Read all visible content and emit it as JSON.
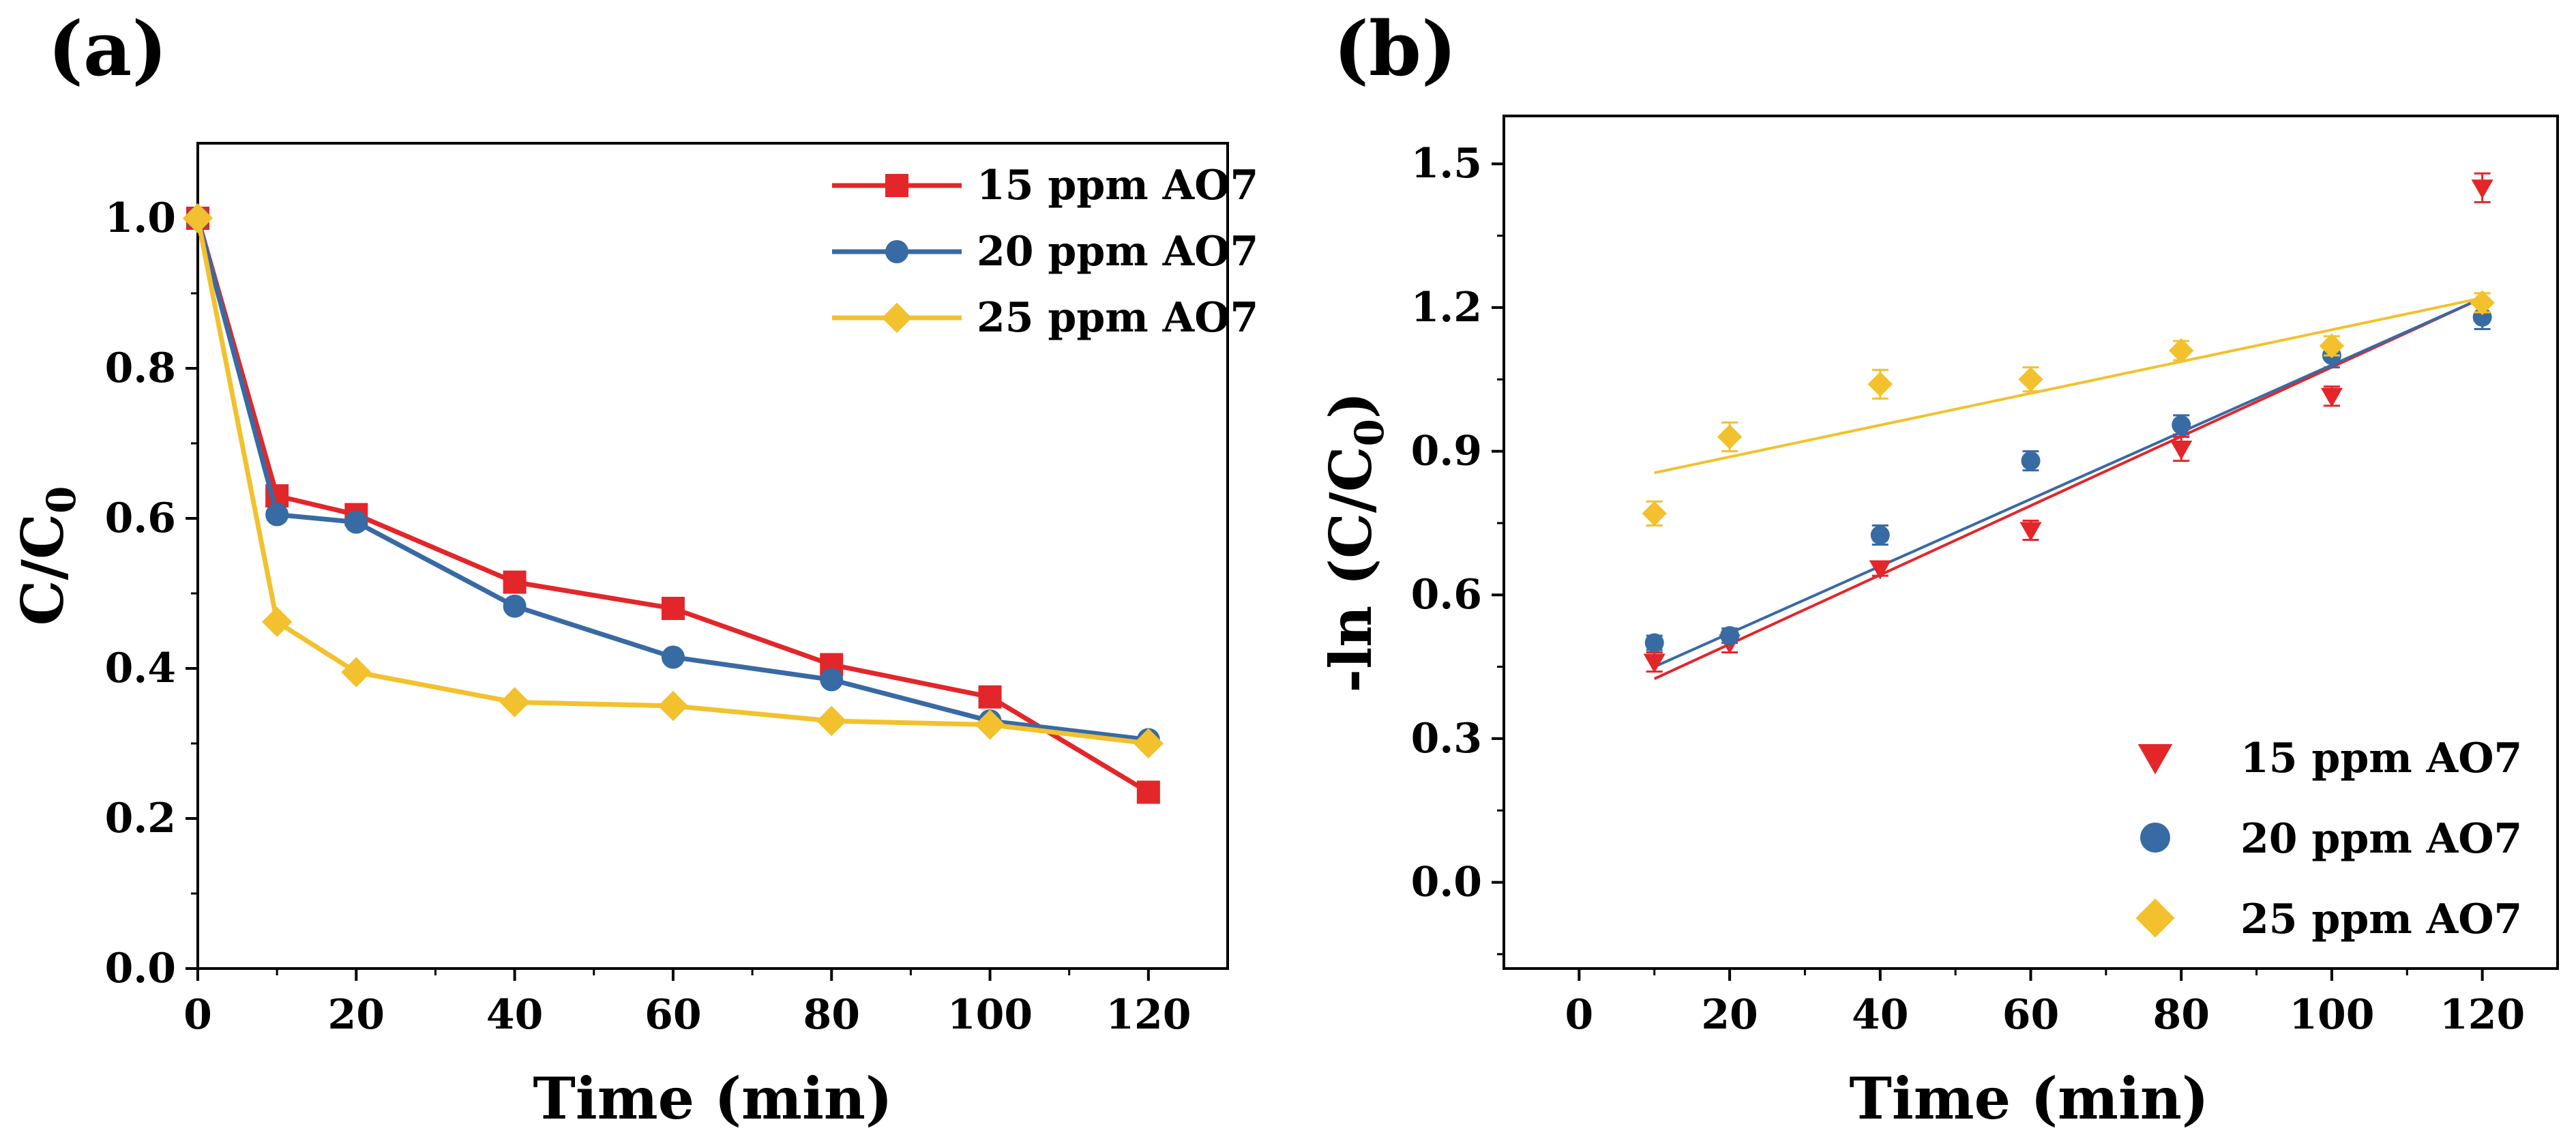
{
  "panels": {
    "a": {
      "label": "(a)"
    },
    "b": {
      "label": "(b)"
    }
  },
  "colors": {
    "red": "#e3262a",
    "blue": "#386aa3",
    "yellow": "#f2c12d"
  },
  "chart_data": [
    {
      "type": "line",
      "panel": "(a)",
      "xlabel": "Time (min)",
      "ylabel": "C/C0",
      "ylabel_main": "C/C",
      "ylabel_sub": "0",
      "xlim": [
        0,
        130
      ],
      "ylim": [
        0,
        1.1
      ],
      "xticks": [
        0,
        20,
        40,
        60,
        80,
        100,
        120
      ],
      "yticks": [
        0.0,
        0.2,
        0.4,
        0.6,
        0.8,
        1.0
      ],
      "xtick_labels": [
        "0",
        "20",
        "40",
        "60",
        "80",
        "100",
        "120"
      ],
      "ytick_labels": [
        "0.0",
        "0.2",
        "0.4",
        "0.6",
        "0.8",
        "1.0"
      ],
      "legend_position": "top-right",
      "series": [
        {
          "name": "15 ppm AO7",
          "color": "#e3262a",
          "marker": "square",
          "x": [
            0,
            10,
            20,
            40,
            60,
            80,
            100,
            120
          ],
          "y": [
            1.0,
            0.63,
            0.605,
            0.515,
            0.48,
            0.405,
            0.362,
            0.235
          ]
        },
        {
          "name": "20 ppm AO7",
          "color": "#386aa3",
          "marker": "circle",
          "x": [
            0,
            10,
            20,
            40,
            60,
            80,
            100,
            120
          ],
          "y": [
            1.0,
            0.605,
            0.595,
            0.483,
            0.415,
            0.385,
            0.33,
            0.305
          ]
        },
        {
          "name": "25 ppm AO7",
          "color": "#f2c12d",
          "marker": "diamond",
          "x": [
            0,
            10,
            20,
            40,
            60,
            80,
            100,
            120
          ],
          "y": [
            1.0,
            0.462,
            0.395,
            0.355,
            0.35,
            0.33,
            0.325,
            0.3
          ]
        }
      ]
    },
    {
      "type": "scatter",
      "panel": "(b)",
      "xlabel": "Time (min)",
      "ylabel": "-ln (C/C0)",
      "ylabel_main": "-ln (C/C",
      "ylabel_sub": "0",
      "ylabel_close": ")",
      "xlim": [
        -10,
        130
      ],
      "ylim": [
        -0.18,
        1.6
      ],
      "xticks": [
        0,
        20,
        40,
        60,
        80,
        100,
        120
      ],
      "yticks": [
        0.0,
        0.3,
        0.6,
        0.9,
        1.2,
        1.5
      ],
      "xtick_labels": [
        "0",
        "20",
        "40",
        "60",
        "80",
        "100",
        "120"
      ],
      "ytick_labels": [
        "0.0",
        "0.3",
        "0.6",
        "0.9",
        "1.2",
        "1.5"
      ],
      "legend_position": "bottom-right",
      "series": [
        {
          "name": "15 ppm AO7",
          "color": "#e3262a",
          "marker": "triangle-down",
          "x": [
            10,
            20,
            40,
            60,
            80,
            100,
            120
          ],
          "y": [
            0.46,
            0.5,
            0.655,
            0.735,
            0.905,
            1.015,
            1.45
          ],
          "err": [
            0.02,
            0.02,
            0.015,
            0.02,
            0.025,
            0.02,
            0.03
          ],
          "fit": {
            "x": [
              10,
              120
            ],
            "y": [
              0.425,
              1.22
            ]
          }
        },
        {
          "name": "20 ppm AO7",
          "color": "#386aa3",
          "marker": "circle",
          "x": [
            10,
            20,
            40,
            60,
            80,
            100,
            120
          ],
          "y": [
            0.5,
            0.515,
            0.725,
            0.88,
            0.955,
            1.1,
            1.18
          ],
          "err": [
            0.015,
            0.015,
            0.02,
            0.02,
            0.02,
            0.025,
            0.025
          ],
          "fit": {
            "x": [
              10,
              120
            ],
            "y": [
              0.45,
              1.22
            ]
          }
        },
        {
          "name": "25 ppm AO7",
          "color": "#f2c12d",
          "marker": "diamond",
          "x": [
            10,
            20,
            40,
            60,
            80,
            100,
            120
          ],
          "y": [
            0.77,
            0.93,
            1.04,
            1.05,
            1.11,
            1.12,
            1.21
          ],
          "err": [
            0.025,
            0.03,
            0.03,
            0.025,
            0.02,
            0.02,
            0.02
          ],
          "fit": {
            "x": [
              10,
              120
            ],
            "y": [
              0.855,
              1.22
            ]
          }
        }
      ]
    }
  ]
}
